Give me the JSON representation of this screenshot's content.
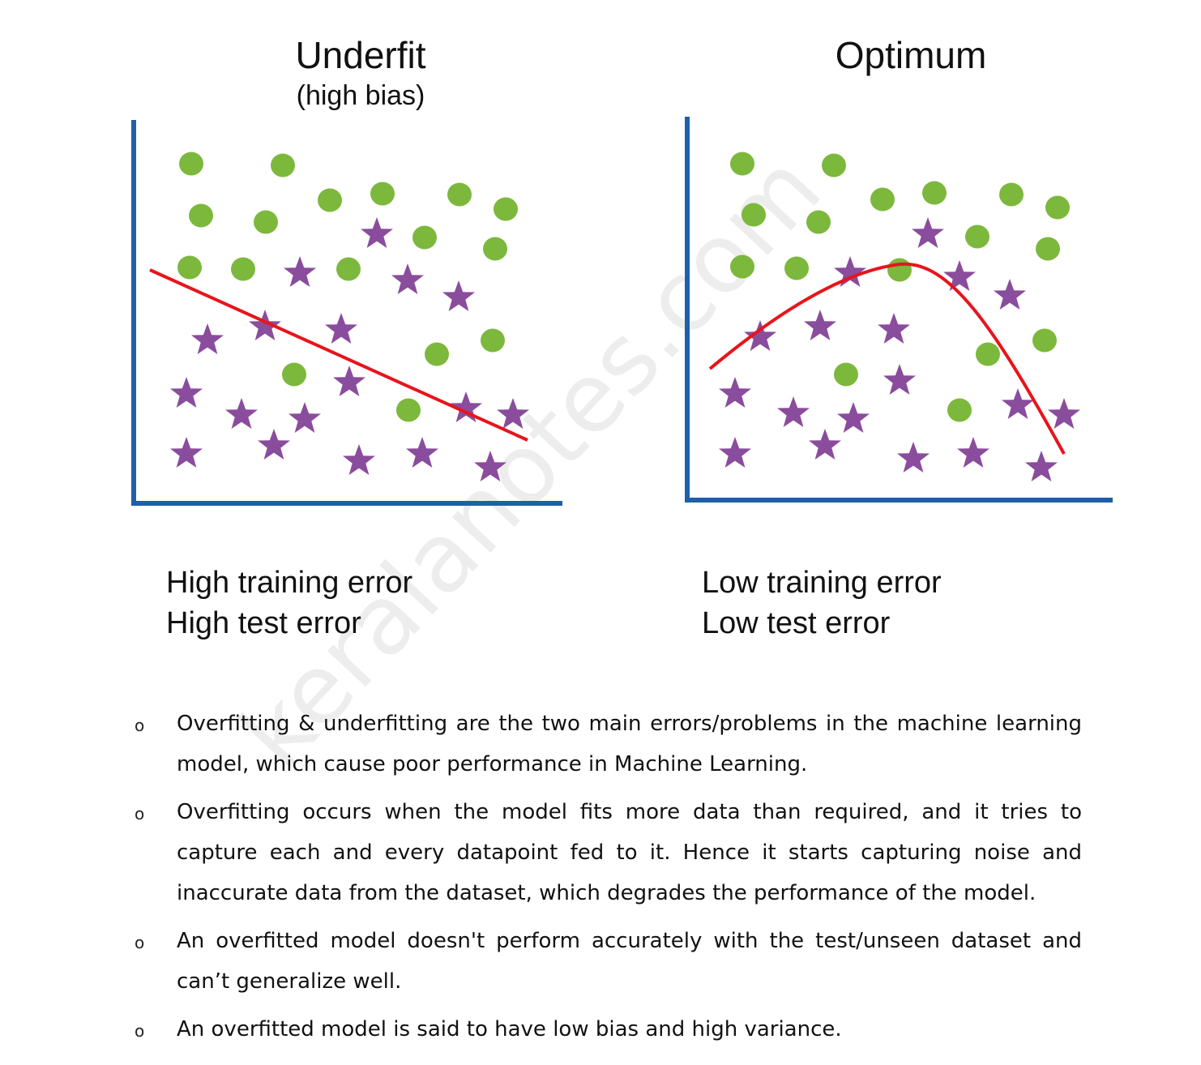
{
  "figure": {
    "left_panel": {
      "title": "Underfit",
      "subtitle": "(high bias)",
      "caption_line1": "High training error",
      "caption_line2": "High test error"
    },
    "right_panel": {
      "title": "Optimum",
      "caption_line1": "Low training error",
      "caption_line2": "Low test error"
    },
    "colors": {
      "axis": "#1f5fa8",
      "circle": "#7cb83c",
      "star": "#8a4c9c",
      "fit_line": "#e8141c"
    }
  },
  "bullets": [
    "Overfitting & underfitting are the two main errors/problems in the machine learning model, which cause poor performance in Machine Learning.",
    "Overfitting occurs when the model fits more data than required, and it tries to capture each and every datapoint fed to it. Hence it starts capturing noise and inaccurate data from the dataset, which degrades the performance of the model.",
    "An overfitted model doesn't perform accurately with the test/unseen dataset and can’t generalize well.",
    "An overfitted model is said to have low bias and high variance."
  ],
  "bullet_marker": "o",
  "watermark": "keralanotes.com"
}
